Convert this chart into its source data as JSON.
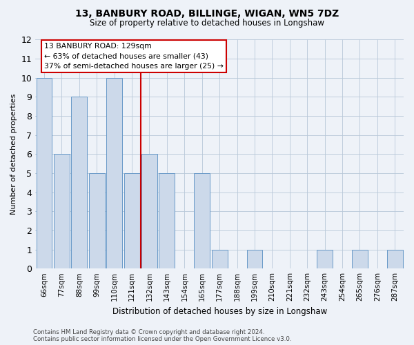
{
  "title1": "13, BANBURY ROAD, BILLINGE, WIGAN, WN5 7DZ",
  "title2": "Size of property relative to detached houses in Longshaw",
  "xlabel": "Distribution of detached houses by size in Longshaw",
  "ylabel": "Number of detached properties",
  "categories": [
    "66sqm",
    "77sqm",
    "88sqm",
    "99sqm",
    "110sqm",
    "121sqm",
    "132sqm",
    "143sqm",
    "154sqm",
    "165sqm",
    "177sqm",
    "188sqm",
    "199sqm",
    "210sqm",
    "221sqm",
    "232sqm",
    "243sqm",
    "254sqm",
    "265sqm",
    "276sqm",
    "287sqm"
  ],
  "values": [
    10,
    6,
    9,
    5,
    10,
    5,
    6,
    5,
    0,
    5,
    1,
    0,
    1,
    0,
    0,
    0,
    1,
    0,
    1,
    0,
    1
  ],
  "bar_color": "#ccd9ea",
  "bar_edge_color": "#6899c8",
  "annotation_line1": "13 BANBURY ROAD: 129sqm",
  "annotation_line2": "← 63% of detached houses are smaller (43)",
  "annotation_line3": "37% of semi-detached houses are larger (25) →",
  "vline_color": "#cc0000",
  "annotation_box_color": "#cc0000",
  "ylim": [
    0,
    12
  ],
  "yticks": [
    0,
    1,
    2,
    3,
    4,
    5,
    6,
    7,
    8,
    9,
    10,
    11,
    12
  ],
  "footer1": "Contains HM Land Registry data © Crown copyright and database right 2024.",
  "footer2": "Contains public sector information licensed under the Open Government Licence v3.0.",
  "bg_color": "#eef2f8",
  "plot_bg_color": "#eef2f8"
}
